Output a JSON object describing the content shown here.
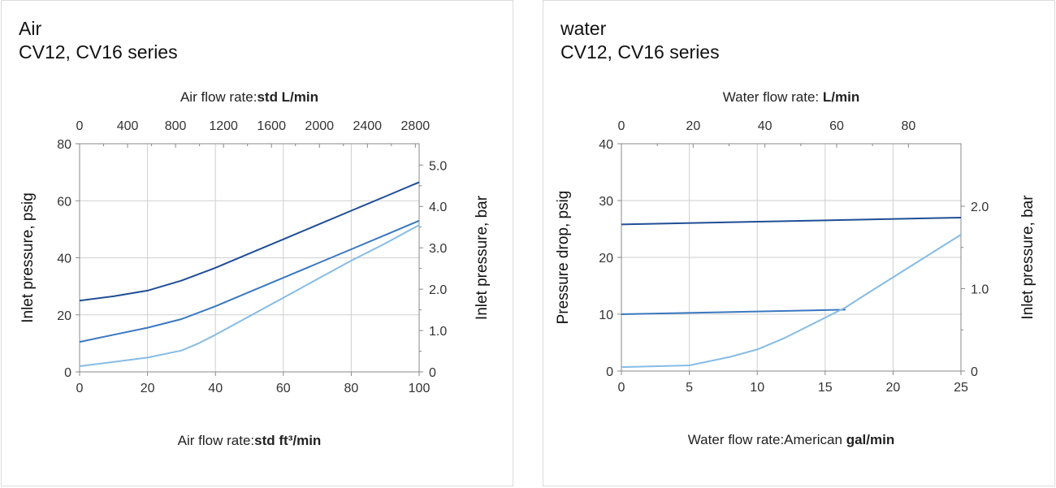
{
  "colors": {
    "dark": "#1f4e96",
    "mid": "#3a78c0",
    "light": "#86bce6"
  },
  "chart_data": [
    {
      "type": "line",
      "title_lines": [
        "Air",
        "CV12, CV16 series"
      ],
      "top_axis": {
        "label_prefix": "Air flow rate:",
        "label_bold": "std L/min",
        "ticks": [
          "0",
          "400",
          "800",
          "1200",
          "1600",
          "2000",
          "2400",
          "2800"
        ],
        "range": [
          0,
          2831.7
        ]
      },
      "bottom_axis": {
        "label_prefix": "Air flow rate:",
        "label_bold": "std ft³/min",
        "ticks": [
          "0",
          "20",
          "40",
          "60",
          "80",
          "100"
        ],
        "range": [
          0,
          100
        ]
      },
      "left_axis": {
        "label": "Inlet pressure, psig",
        "ticks": [
          "0",
          "20",
          "40",
          "60",
          "80"
        ],
        "range": [
          0,
          80
        ]
      },
      "right_axis": {
        "label": "Inlet pressure, bar",
        "ticks": [
          "0",
          "1.0",
          "2.0",
          "3.0",
          "4.0",
          "5.0"
        ],
        "range": [
          0,
          5.516
        ]
      },
      "grid": true,
      "series": [
        {
          "color_key": "dark",
          "x": [
            0,
            10,
            20,
            30,
            40,
            50,
            60,
            70,
            80,
            90,
            100
          ],
          "y": [
            25,
            26.5,
            28.5,
            32,
            36.5,
            41.5,
            46.5,
            51.5,
            56.5,
            61.5,
            66.5
          ]
        },
        {
          "color_key": "mid",
          "x": [
            0,
            10,
            20,
            30,
            40,
            50,
            60,
            70,
            80,
            90,
            100
          ],
          "y": [
            10.5,
            13,
            15.5,
            18.5,
            23,
            28,
            33,
            38,
            43,
            48,
            53
          ]
        },
        {
          "color_key": "light",
          "x": [
            0,
            10,
            20,
            30,
            35,
            40,
            50,
            60,
            70,
            80,
            90,
            100
          ],
          "y": [
            2,
            3.5,
            5,
            7.5,
            10,
            13,
            19.5,
            26,
            32.5,
            39,
            45,
            51.5
          ]
        }
      ]
    },
    {
      "type": "line",
      "title_lines": [
        "water",
        "CV12, CV16 series"
      ],
      "top_axis": {
        "label_prefix": "Water flow rate: ",
        "label_bold": "L/min",
        "ticks": [
          "0",
          "20",
          "40",
          "60",
          "80"
        ],
        "range": [
          0,
          94.64
        ]
      },
      "bottom_axis": {
        "label_prefix": "Water flow rate:American ",
        "label_bold": "gal/min",
        "ticks": [
          "0",
          "5",
          "10",
          "15",
          "20",
          "25"
        ],
        "range": [
          0,
          25
        ]
      },
      "left_axis": {
        "label": "Pressure drop, psig",
        "ticks": [
          "0",
          "10",
          "20",
          "30",
          "40"
        ],
        "range": [
          0,
          40
        ]
      },
      "right_axis": {
        "label": "Inlet pressure, bar",
        "ticks": [
          "0",
          "1.0",
          "2.0"
        ],
        "range": [
          0,
          2.758
        ]
      },
      "grid": true,
      "series": [
        {
          "color_key": "dark",
          "x": [
            0,
            25
          ],
          "y": [
            25.8,
            27
          ]
        },
        {
          "color_key": "mid",
          "x": [
            0,
            16.5
          ],
          "y": [
            10,
            10.8
          ]
        },
        {
          "color_key": "light",
          "x": [
            0,
            5,
            8,
            10,
            12,
            14,
            16.5,
            18,
            20,
            22,
            25
          ],
          "y": [
            0.7,
            1,
            2.5,
            3.8,
            5.8,
            8.2,
            11.2,
            13.5,
            16.5,
            19.5,
            24
          ]
        }
      ]
    }
  ]
}
